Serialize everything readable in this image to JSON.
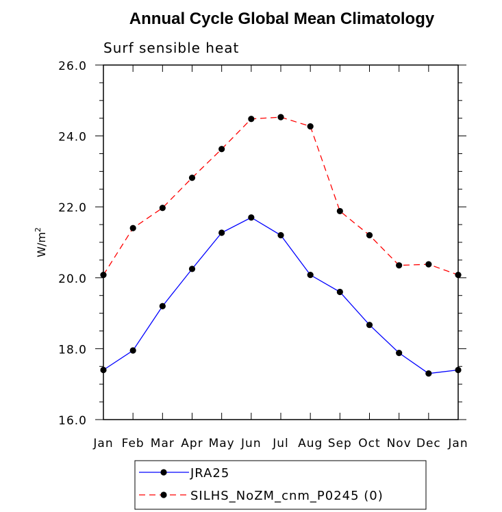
{
  "chart_data": {
    "type": "line",
    "title": "Annual Cycle Global Mean Climatology",
    "subtitle": "Surf sensible heat",
    "ylabel": "W/m",
    "ylabel_superscript": "2",
    "xlabel": "",
    "categories": [
      "Jan",
      "Feb",
      "Mar",
      "Apr",
      "May",
      "Jun",
      "Jul",
      "Aug",
      "Sep",
      "Oct",
      "Nov",
      "Dec",
      "Jan"
    ],
    "ylim": [
      16.0,
      26.0
    ],
    "yticks": [
      "16.0",
      "18.0",
      "20.0",
      "22.0",
      "24.0",
      "26.0"
    ],
    "grid": false,
    "legend_position": "bottom",
    "series": [
      {
        "name": "JRA25",
        "color": "#0000ff",
        "dash": "solid",
        "values": [
          17.4,
          17.95,
          19.2,
          20.25,
          21.27,
          21.7,
          21.2,
          20.08,
          19.6,
          18.67,
          17.88,
          17.3,
          17.4
        ]
      },
      {
        "name": "SILHS_NoZM_cnm_P0245 (0)",
        "color": "#ff0000",
        "dash": "dashed",
        "values": [
          20.08,
          21.4,
          21.97,
          22.82,
          23.63,
          24.48,
          24.53,
          24.27,
          21.88,
          21.2,
          20.35,
          20.38,
          20.08
        ]
      }
    ]
  }
}
